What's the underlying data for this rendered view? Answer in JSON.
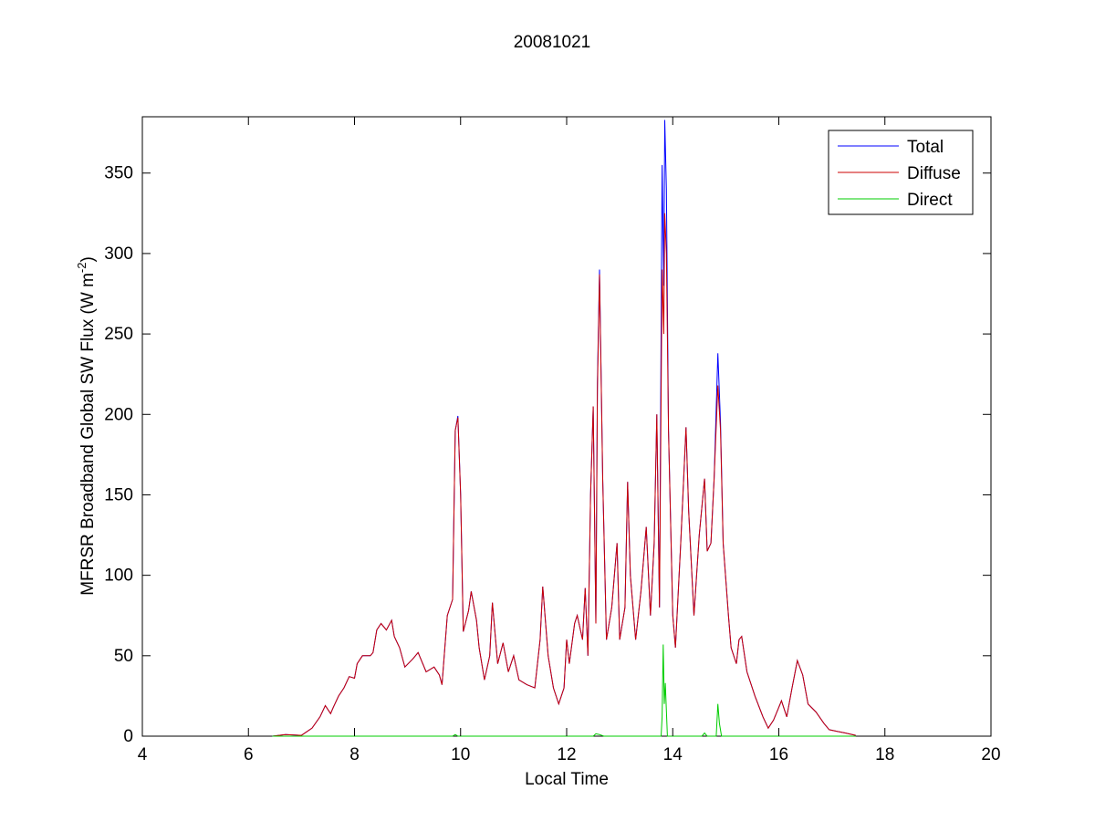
{
  "chart_data": {
    "type": "line",
    "title": "20081021",
    "xlabel": "Local Time",
    "ylabel": "MFRSR Broadband Global SW Flux (W m",
    "ylabel_sup": "-2",
    "ylabel_close": ")",
    "xlim": [
      4,
      20
    ],
    "ylim": [
      0,
      385
    ],
    "xticks": [
      4,
      6,
      8,
      10,
      12,
      14,
      16,
      18,
      20
    ],
    "yticks": [
      0,
      50,
      100,
      150,
      200,
      250,
      300,
      350
    ],
    "grid": false,
    "legend_position": "top-right",
    "series": [
      {
        "name": "Total",
        "color": "#0000ff",
        "points": [
          [
            6.45,
            0
          ],
          [
            6.7,
            1
          ],
          [
            7.0,
            0.5
          ],
          [
            7.2,
            5
          ],
          [
            7.35,
            12
          ],
          [
            7.45,
            19
          ],
          [
            7.55,
            14
          ],
          [
            7.6,
            18
          ],
          [
            7.7,
            25
          ],
          [
            7.8,
            30
          ],
          [
            7.9,
            37
          ],
          [
            8.0,
            36
          ],
          [
            8.05,
            45
          ],
          [
            8.15,
            50
          ],
          [
            8.3,
            50
          ],
          [
            8.35,
            52
          ],
          [
            8.42,
            66
          ],
          [
            8.5,
            70
          ],
          [
            8.6,
            66
          ],
          [
            8.7,
            72
          ],
          [
            8.75,
            62
          ],
          [
            8.85,
            55
          ],
          [
            8.95,
            43
          ],
          [
            9.1,
            48
          ],
          [
            9.2,
            52
          ],
          [
            9.35,
            40
          ],
          [
            9.5,
            43
          ],
          [
            9.6,
            38
          ],
          [
            9.65,
            32
          ],
          [
            9.75,
            75
          ],
          [
            9.85,
            85
          ],
          [
            9.9,
            190
          ],
          [
            9.95,
            199
          ],
          [
            10.0,
            150
          ],
          [
            10.05,
            65
          ],
          [
            10.15,
            78
          ],
          [
            10.2,
            90
          ],
          [
            10.3,
            72
          ],
          [
            10.35,
            55
          ],
          [
            10.45,
            35
          ],
          [
            10.55,
            50
          ],
          [
            10.6,
            83
          ],
          [
            10.7,
            45
          ],
          [
            10.8,
            58
          ],
          [
            10.9,
            40
          ],
          [
            11.0,
            50
          ],
          [
            11.1,
            35
          ],
          [
            11.25,
            32
          ],
          [
            11.4,
            30
          ],
          [
            11.5,
            60
          ],
          [
            11.55,
            93
          ],
          [
            11.65,
            50
          ],
          [
            11.75,
            30
          ],
          [
            11.85,
            20
          ],
          [
            11.95,
            30
          ],
          [
            12.0,
            60
          ],
          [
            12.05,
            45
          ],
          [
            12.15,
            70
          ],
          [
            12.2,
            75
          ],
          [
            12.3,
            60
          ],
          [
            12.35,
            92
          ],
          [
            12.4,
            50
          ],
          [
            12.45,
            150
          ],
          [
            12.5,
            205
          ],
          [
            12.55,
            70
          ],
          [
            12.58,
            220
          ],
          [
            12.62,
            290
          ],
          [
            12.68,
            160
          ],
          [
            12.75,
            60
          ],
          [
            12.85,
            80
          ],
          [
            12.95,
            120
          ],
          [
            13.0,
            60
          ],
          [
            13.1,
            80
          ],
          [
            13.15,
            158
          ],
          [
            13.2,
            100
          ],
          [
            13.3,
            60
          ],
          [
            13.4,
            90
          ],
          [
            13.5,
            130
          ],
          [
            13.58,
            75
          ],
          [
            13.65,
            120
          ],
          [
            13.7,
            200
          ],
          [
            13.75,
            80
          ],
          [
            13.8,
            355
          ],
          [
            13.83,
            280
          ],
          [
            13.85,
            383
          ],
          [
            13.88,
            340
          ],
          [
            13.92,
            190
          ],
          [
            14.0,
            75
          ],
          [
            14.05,
            55
          ],
          [
            14.15,
            120
          ],
          [
            14.25,
            192
          ],
          [
            14.3,
            140
          ],
          [
            14.4,
            75
          ],
          [
            14.5,
            125
          ],
          [
            14.6,
            160
          ],
          [
            14.65,
            115
          ],
          [
            14.72,
            120
          ],
          [
            14.78,
            160
          ],
          [
            14.85,
            238
          ],
          [
            14.9,
            195
          ],
          [
            14.95,
            120
          ],
          [
            15.05,
            75
          ],
          [
            15.1,
            55
          ],
          [
            15.2,
            45
          ],
          [
            15.25,
            60
          ],
          [
            15.3,
            62
          ],
          [
            15.4,
            40
          ],
          [
            15.55,
            25
          ],
          [
            15.7,
            12
          ],
          [
            15.8,
            5
          ],
          [
            15.9,
            10
          ],
          [
            16.0,
            18
          ],
          [
            16.05,
            22
          ],
          [
            16.15,
            12
          ],
          [
            16.25,
            30
          ],
          [
            16.35,
            47
          ],
          [
            16.45,
            38
          ],
          [
            16.55,
            20
          ],
          [
            16.7,
            15
          ],
          [
            16.85,
            8
          ],
          [
            16.95,
            4
          ],
          [
            17.1,
            3
          ],
          [
            17.25,
            2
          ],
          [
            17.45,
            0.5
          ]
        ]
      },
      {
        "name": "Diffuse",
        "color": "#cc0000",
        "points": [
          [
            6.45,
            0
          ],
          [
            6.7,
            1
          ],
          [
            7.0,
            0.5
          ],
          [
            7.2,
            5
          ],
          [
            7.35,
            12
          ],
          [
            7.45,
            19
          ],
          [
            7.55,
            14
          ],
          [
            7.6,
            18
          ],
          [
            7.7,
            25
          ],
          [
            7.8,
            30
          ],
          [
            7.9,
            37
          ],
          [
            8.0,
            36
          ],
          [
            8.05,
            45
          ],
          [
            8.15,
            50
          ],
          [
            8.3,
            50
          ],
          [
            8.35,
            52
          ],
          [
            8.42,
            66
          ],
          [
            8.5,
            70
          ],
          [
            8.6,
            66
          ],
          [
            8.7,
            72
          ],
          [
            8.75,
            62
          ],
          [
            8.85,
            55
          ],
          [
            8.95,
            43
          ],
          [
            9.1,
            48
          ],
          [
            9.2,
            52
          ],
          [
            9.35,
            40
          ],
          [
            9.5,
            43
          ],
          [
            9.6,
            38
          ],
          [
            9.65,
            32
          ],
          [
            9.75,
            75
          ],
          [
            9.85,
            85
          ],
          [
            9.9,
            190
          ],
          [
            9.95,
            198
          ],
          [
            10.0,
            150
          ],
          [
            10.05,
            65
          ],
          [
            10.15,
            78
          ],
          [
            10.2,
            90
          ],
          [
            10.3,
            72
          ],
          [
            10.35,
            55
          ],
          [
            10.45,
            35
          ],
          [
            10.55,
            50
          ],
          [
            10.6,
            83
          ],
          [
            10.7,
            45
          ],
          [
            10.8,
            58
          ],
          [
            10.9,
            40
          ],
          [
            11.0,
            50
          ],
          [
            11.1,
            35
          ],
          [
            11.25,
            32
          ],
          [
            11.4,
            30
          ],
          [
            11.5,
            60
          ],
          [
            11.55,
            93
          ],
          [
            11.65,
            50
          ],
          [
            11.75,
            30
          ],
          [
            11.85,
            20
          ],
          [
            11.95,
            30
          ],
          [
            12.0,
            60
          ],
          [
            12.05,
            45
          ],
          [
            12.15,
            70
          ],
          [
            12.2,
            75
          ],
          [
            12.3,
            60
          ],
          [
            12.35,
            92
          ],
          [
            12.4,
            50
          ],
          [
            12.45,
            150
          ],
          [
            12.5,
            205
          ],
          [
            12.55,
            70
          ],
          [
            12.58,
            215
          ],
          [
            12.62,
            287
          ],
          [
            12.68,
            160
          ],
          [
            12.75,
            60
          ],
          [
            12.85,
            80
          ],
          [
            12.95,
            120
          ],
          [
            13.0,
            60
          ],
          [
            13.1,
            80
          ],
          [
            13.15,
            158
          ],
          [
            13.2,
            100
          ],
          [
            13.3,
            60
          ],
          [
            13.4,
            90
          ],
          [
            13.5,
            130
          ],
          [
            13.58,
            75
          ],
          [
            13.65,
            120
          ],
          [
            13.7,
            200
          ],
          [
            13.75,
            80
          ],
          [
            13.8,
            290
          ],
          [
            13.83,
            250
          ],
          [
            13.85,
            325
          ],
          [
            13.88,
            300
          ],
          [
            13.92,
            190
          ],
          [
            14.0,
            75
          ],
          [
            14.05,
            55
          ],
          [
            14.15,
            120
          ],
          [
            14.25,
            192
          ],
          [
            14.3,
            140
          ],
          [
            14.4,
            75
          ],
          [
            14.5,
            125
          ],
          [
            14.6,
            160
          ],
          [
            14.65,
            115
          ],
          [
            14.72,
            120
          ],
          [
            14.78,
            160
          ],
          [
            14.85,
            218
          ],
          [
            14.9,
            190
          ],
          [
            14.95,
            120
          ],
          [
            15.05,
            75
          ],
          [
            15.1,
            55
          ],
          [
            15.2,
            45
          ],
          [
            15.25,
            60
          ],
          [
            15.3,
            62
          ],
          [
            15.4,
            40
          ],
          [
            15.55,
            25
          ],
          [
            15.7,
            12
          ],
          [
            15.8,
            5
          ],
          [
            15.9,
            10
          ],
          [
            16.0,
            18
          ],
          [
            16.05,
            22
          ],
          [
            16.15,
            12
          ],
          [
            16.25,
            30
          ],
          [
            16.35,
            47
          ],
          [
            16.45,
            38
          ],
          [
            16.55,
            20
          ],
          [
            16.7,
            15
          ],
          [
            16.85,
            8
          ],
          [
            16.95,
            4
          ],
          [
            17.1,
            3
          ],
          [
            17.25,
            2
          ],
          [
            17.45,
            0.5
          ]
        ]
      },
      {
        "name": "Direct",
        "color": "#00cc00",
        "points": [
          [
            6.45,
            0
          ],
          [
            9.85,
            0
          ],
          [
            9.9,
            1
          ],
          [
            9.95,
            0
          ],
          [
            12.5,
            0
          ],
          [
            12.55,
            1.5
          ],
          [
            12.62,
            1
          ],
          [
            12.7,
            0
          ],
          [
            13.78,
            0
          ],
          [
            13.8,
            12
          ],
          [
            13.82,
            57
          ],
          [
            13.84,
            20
          ],
          [
            13.86,
            33
          ],
          [
            13.9,
            0
          ],
          [
            14.55,
            0
          ],
          [
            14.6,
            2
          ],
          [
            14.65,
            0
          ],
          [
            14.82,
            0
          ],
          [
            14.85,
            20
          ],
          [
            14.88,
            8
          ],
          [
            14.92,
            0
          ],
          [
            17.45,
            0
          ]
        ]
      }
    ]
  }
}
